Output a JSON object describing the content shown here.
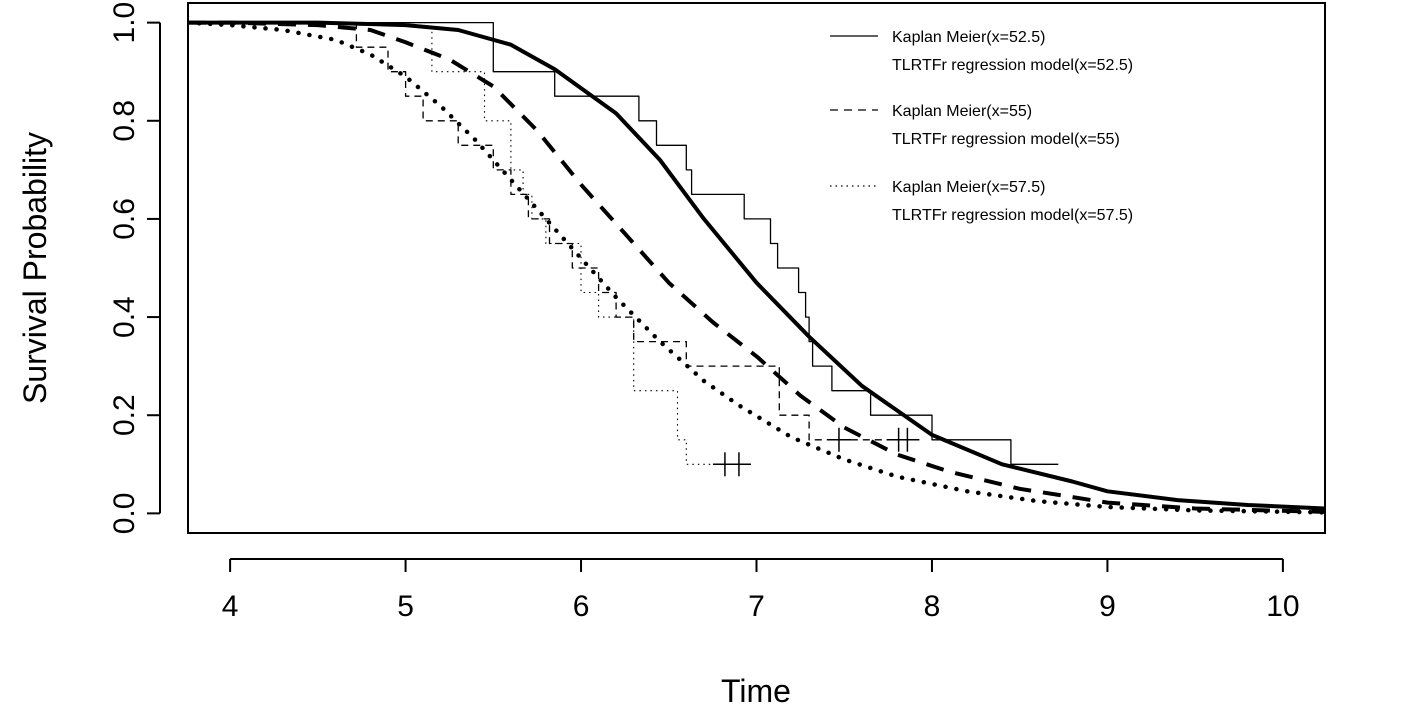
{
  "chart_data": {
    "type": "line",
    "xlabel": "Time",
    "ylabel": "Survival Probability",
    "xlim": [
      3.76,
      10.24
    ],
    "ylim": [
      -0.04,
      1.04
    ],
    "xticks": [
      4,
      5,
      6,
      7,
      8,
      9,
      10
    ],
    "yticks": [
      "0.0",
      "0.2",
      "0.4",
      "0.6",
      "0.8",
      "1.0"
    ],
    "grid": false,
    "legend_position": "top-right",
    "legend": [
      {
        "label": "Kaplan Meier(x=52.5)",
        "style": "solid-thin"
      },
      {
        "label": "TLRTFr regression model(x=52.5)",
        "style": "none"
      },
      {
        "label": "Kaplan Meier(x=55)",
        "style": "dashed-thin"
      },
      {
        "label": "TLRTFr regression model(x=55)",
        "style": "none"
      },
      {
        "label": "Kaplan Meier(x=57.5)",
        "style": "dotted-thin"
      },
      {
        "label": "TLRTFr regression model(x=57.5)",
        "style": "none"
      }
    ],
    "series": [
      {
        "kind": "km",
        "style": "solid",
        "width": 1.3,
        "x": [
          3.76,
          5.5,
          5.5,
          5.85,
          5.85,
          6.33,
          6.33,
          6.43,
          6.43,
          6.6,
          6.6,
          6.63,
          6.63,
          6.93,
          6.93,
          7.08,
          7.08,
          7.12,
          7.12,
          7.24,
          7.24,
          7.28,
          7.28,
          7.3,
          7.3,
          7.32,
          7.32,
          7.43,
          7.43,
          7.5,
          7.5,
          7.65,
          7.65,
          7.8,
          7.8,
          8.0,
          8.0,
          8.45,
          8.45,
          8.72
        ],
        "y": [
          1.0,
          1.0,
          0.9,
          0.9,
          0.85,
          0.85,
          0.8,
          0.8,
          0.75,
          0.75,
          0.7,
          0.7,
          0.65,
          0.65,
          0.6,
          0.6,
          0.55,
          0.55,
          0.5,
          0.5,
          0.45,
          0.45,
          0.4,
          0.4,
          0.35,
          0.35,
          0.3,
          0.3,
          0.25,
          0.25,
          0.25,
          0.25,
          0.2,
          0.2,
          0.2,
          0.2,
          0.15,
          0.15,
          0.1,
          0.1
        ],
        "censor_x": [],
        "censor_y": []
      },
      {
        "kind": "km",
        "style": "dashed",
        "width": 1.3,
        "x": [
          3.76,
          4.72,
          4.72,
          4.9,
          4.9,
          5.0,
          5.0,
          5.1,
          5.1,
          5.3,
          5.3,
          5.4,
          5.4,
          5.5,
          5.5,
          5.6,
          5.6,
          5.7,
          5.7,
          5.75,
          5.75,
          5.82,
          5.82,
          5.95,
          5.95,
          6.1,
          6.1,
          6.2,
          6.2,
          6.3,
          6.3,
          6.6,
          6.6,
          6.7,
          6.7,
          7.13,
          7.13,
          7.3,
          7.3,
          7.47,
          7.47,
          7.85
        ],
        "y": [
          1.0,
          1.0,
          0.95,
          0.95,
          0.9,
          0.9,
          0.85,
          0.85,
          0.8,
          0.8,
          0.75,
          0.75,
          0.75,
          0.75,
          0.7,
          0.7,
          0.65,
          0.65,
          0.6,
          0.6,
          0.6,
          0.6,
          0.55,
          0.55,
          0.5,
          0.5,
          0.45,
          0.45,
          0.4,
          0.4,
          0.35,
          0.35,
          0.3,
          0.3,
          0.3,
          0.3,
          0.2,
          0.2,
          0.15,
          0.15,
          0.15,
          0.15
        ],
        "censor_x": [
          7.47,
          7.81,
          7.86
        ],
        "censor_y": [
          0.15,
          0.15,
          0.15
        ]
      },
      {
        "kind": "km",
        "style": "dotted",
        "width": 1.1,
        "x": [
          3.76,
          5.15,
          5.15,
          5.3,
          5.3,
          5.45,
          5.45,
          5.6,
          5.6,
          5.67,
          5.67,
          5.72,
          5.72,
          5.8,
          5.8,
          6.0,
          6.0,
          6.1,
          6.1,
          6.3,
          6.3,
          6.35,
          6.35,
          6.55,
          6.55,
          6.6,
          6.6,
          6.93
        ],
        "y": [
          1.0,
          1.0,
          0.9,
          0.9,
          0.9,
          0.9,
          0.8,
          0.8,
          0.7,
          0.7,
          0.65,
          0.65,
          0.6,
          0.6,
          0.55,
          0.55,
          0.45,
          0.45,
          0.4,
          0.4,
          0.25,
          0.25,
          0.25,
          0.25,
          0.15,
          0.15,
          0.1,
          0.1
        ],
        "censor_x": [
          6.82,
          6.9
        ],
        "censor_y": [
          0.1,
          0.1
        ]
      },
      {
        "kind": "model",
        "style": "solid",
        "width": 4,
        "x": [
          3.76,
          4.0,
          4.5,
          5.0,
          5.3,
          5.6,
          5.85,
          6.2,
          6.45,
          6.7,
          7.0,
          7.3,
          7.6,
          8.0,
          8.4,
          8.8,
          9.0,
          9.4,
          9.8,
          10.24
        ],
        "y": [
          1.0,
          1.0,
          1.0,
          0.995,
          0.985,
          0.955,
          0.905,
          0.815,
          0.72,
          0.6,
          0.47,
          0.36,
          0.26,
          0.16,
          0.1,
          0.065,
          0.045,
          0.027,
          0.017,
          0.01
        ]
      },
      {
        "kind": "model",
        "style": "dashed",
        "width": 4,
        "x": [
          3.76,
          4.0,
          4.5,
          4.8,
          5.0,
          5.25,
          5.5,
          5.75,
          6.0,
          6.25,
          6.5,
          6.75,
          7.0,
          7.25,
          7.5,
          7.8,
          8.1,
          8.5,
          9.0,
          9.5,
          10.24
        ],
        "y": [
          1.0,
          1.0,
          0.995,
          0.985,
          0.96,
          0.925,
          0.87,
          0.78,
          0.67,
          0.57,
          0.47,
          0.39,
          0.32,
          0.24,
          0.175,
          0.12,
          0.085,
          0.05,
          0.022,
          0.01,
          0.003
        ]
      },
      {
        "kind": "model",
        "style": "dotted",
        "width": 4.5,
        "x": [
          3.76,
          4.0,
          4.3,
          4.6,
          4.8,
          5.0,
          5.2,
          5.4,
          5.6,
          5.8,
          6.0,
          6.2,
          6.45,
          6.7,
          6.9,
          7.2,
          7.5,
          7.8,
          8.2,
          8.6,
          9.0,
          9.5,
          10.24
        ],
        "y": [
          1.0,
          0.995,
          0.985,
          0.965,
          0.935,
          0.89,
          0.83,
          0.76,
          0.68,
          0.6,
          0.52,
          0.44,
          0.35,
          0.27,
          0.22,
          0.155,
          0.11,
          0.075,
          0.045,
          0.025,
          0.013,
          0.006,
          0.002
        ]
      }
    ]
  }
}
